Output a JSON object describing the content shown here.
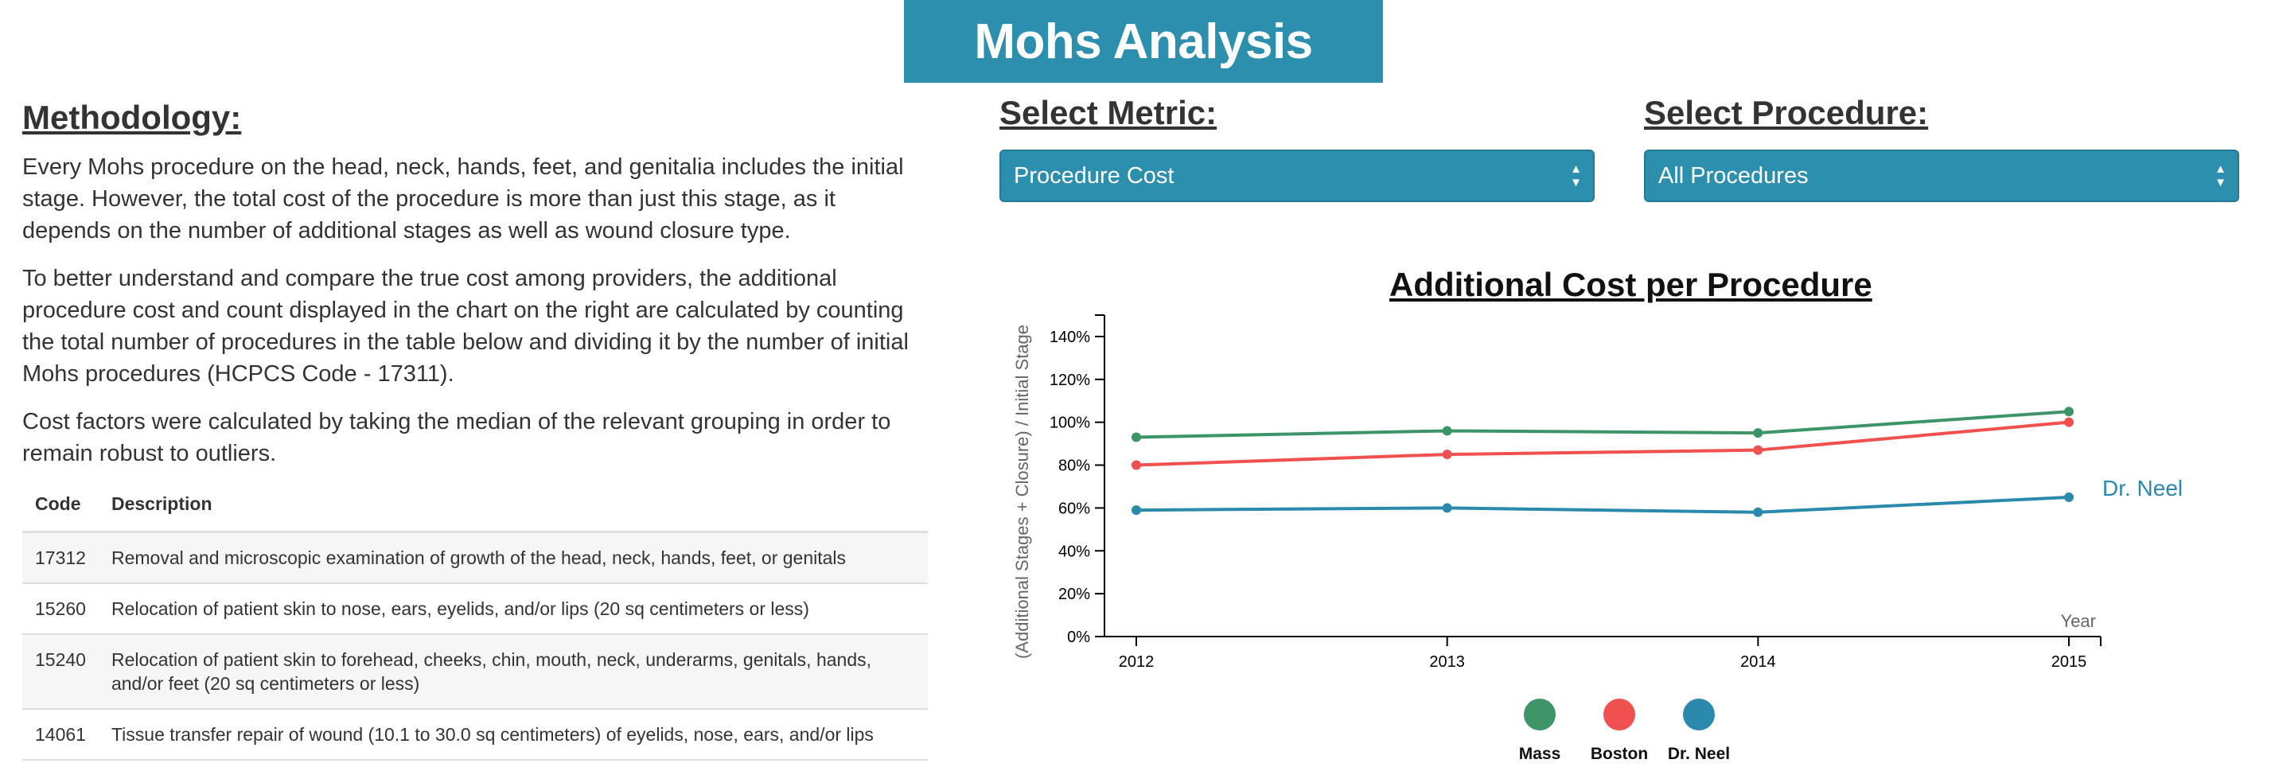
{
  "header": {
    "title": "Mohs Analysis"
  },
  "methodology": {
    "heading": "Methodology:",
    "paragraphs": [
      "Every Mohs procedure on the head, neck, hands, feet, and genitalia includes the initial stage. However, the total cost of the procedure is more than just this stage, as it depends on the number of additional stages as well as wound closure type.",
      "To better understand and compare the true cost among providers, the additional procedure cost and count displayed in the chart on the right are calculated by counting the total number of procedures in the table below and dividing it by the number of initial Mohs procedures (HCPCS Code - 17311).",
      "Cost factors were calculated by taking the median of the relevant grouping in order to remain robust to outliers."
    ]
  },
  "table": {
    "headers": [
      "Code",
      "Description"
    ],
    "rows": [
      {
        "code": "17312",
        "description": "Removal and microscopic examination of growth of the head, neck, hands, feet, or genitals"
      },
      {
        "code": "15260",
        "description": "Relocation of patient skin to nose, ears, eyelids, and/or lips (20 sq centimeters or less)"
      },
      {
        "code": "15240",
        "description": "Relocation of patient skin to forehead, cheeks, chin, mouth, neck, underarms, genitals, hands, and/or feet (20 sq centimeters or less)"
      },
      {
        "code": "14061",
        "description": "Tissue transfer repair of wound (10.1 to 30.0 sq centimeters) of eyelids, nose, ears, and/or lips"
      }
    ]
  },
  "controls": {
    "metric": {
      "label": "Select Metric:",
      "selected": "Procedure Cost"
    },
    "procedure": {
      "label": "Select Procedure:",
      "selected": "All Procedures"
    },
    "accent_color": "#2d8fae",
    "arrow_icon": "updown-arrows-icon"
  },
  "chart_data": {
    "type": "line",
    "title": "Additional Cost per Procedure",
    "ylabel": "(Additional Stages + Closure) / Initial Stage",
    "xlabel": "Year",
    "x": [
      "2012",
      "2013",
      "2014",
      "2015"
    ],
    "ylim": [
      0,
      150
    ],
    "yticks": [
      "0%",
      "20%",
      "40%",
      "60%",
      "80%",
      "100%",
      "120%",
      "140%"
    ],
    "series": [
      {
        "name": "Mass",
        "color": "#3d9467",
        "values": [
          93,
          96,
          95,
          105
        ]
      },
      {
        "name": "Boston",
        "color": "#f0514f",
        "values": [
          80,
          85,
          87,
          100
        ]
      },
      {
        "name": "Dr. Neel",
        "color": "#2a89ad",
        "values": [
          59,
          60,
          58,
          65
        ]
      }
    ],
    "end_label": "Dr. Neel",
    "legend_position": "bottom-center"
  }
}
